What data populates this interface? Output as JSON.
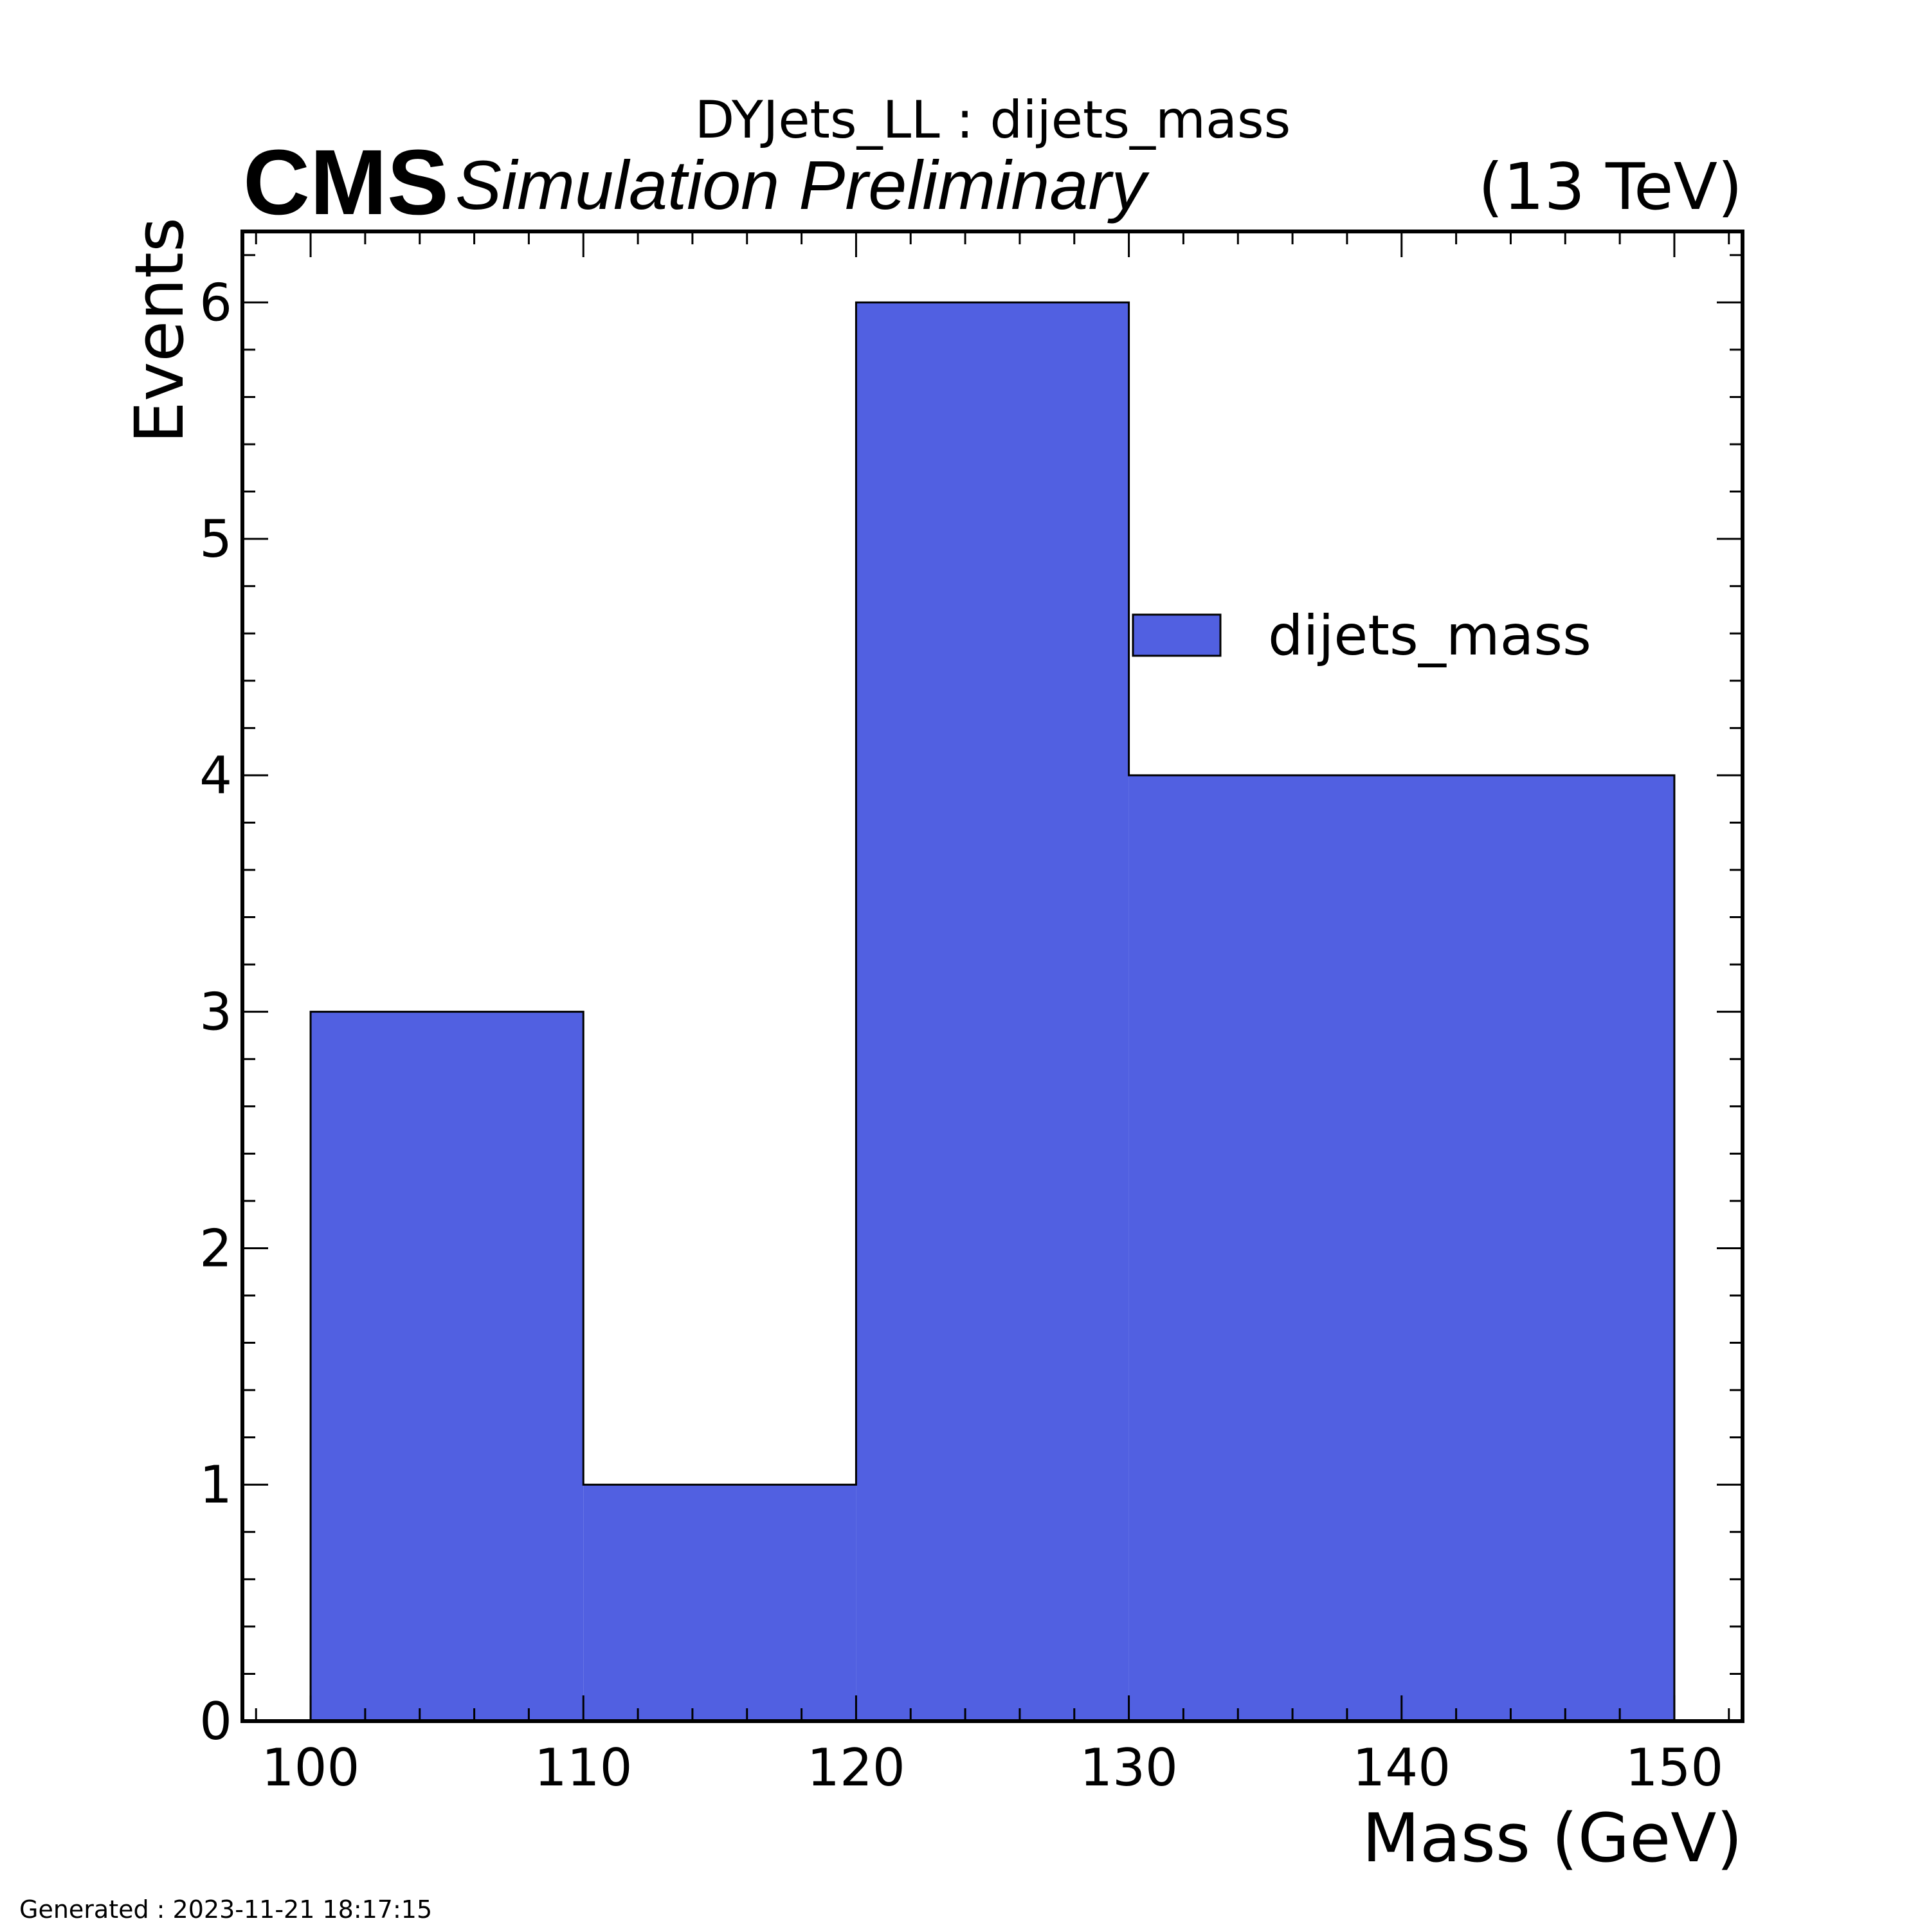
{
  "header": {
    "title": "DYJets_LL : dijets_mass",
    "experiment": "CMS",
    "status": "Simulation Preliminary",
    "energy": "(13 TeV)"
  },
  "footer": {
    "generated": "Generated : 2023-11-21 18:17:15"
  },
  "chart_data": {
    "type": "bar",
    "title": "DYJets_LL : dijets_mass",
    "xlabel": "Mass (GeV)",
    "ylabel": "Events",
    "bin_edges": [
      100,
      110,
      120,
      130,
      150
    ],
    "values": [
      3,
      1,
      6,
      4
    ],
    "xlim": [
      97.5,
      152.5
    ],
    "ylim": [
      0,
      6.3
    ],
    "x_ticks": [
      100,
      110,
      120,
      130,
      140,
      150
    ],
    "y_ticks": [
      0,
      1,
      2,
      3,
      4,
      5,
      6
    ],
    "series": [
      {
        "name": "dijets_mass",
        "color": "#5160E1",
        "edge_color": "#000000"
      }
    ],
    "legend": {
      "placement": "upper-right"
    },
    "grid": false
  }
}
